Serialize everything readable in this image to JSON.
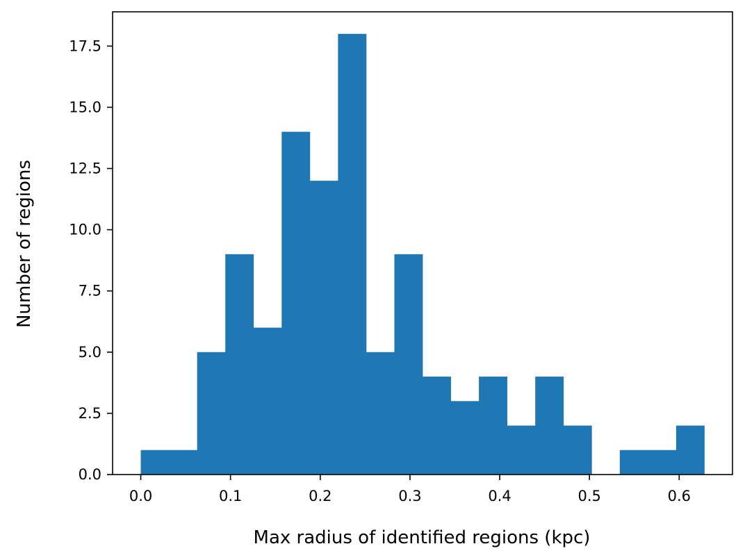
{
  "chart_data": {
    "type": "bar",
    "subtype": "histogram",
    "title": "",
    "xlabel": "Max radius of identified regions (kpc)",
    "ylabel": "Number of regions",
    "xlim": [
      -0.0314,
      0.6594
    ],
    "ylim": [
      0,
      18.9
    ],
    "bin_edges": [
      0.0,
      0.0314,
      0.0628,
      0.0942,
      0.1256,
      0.157,
      0.1884,
      0.2198,
      0.2512,
      0.2826,
      0.314,
      0.3454,
      0.3768,
      0.4082,
      0.4396,
      0.471,
      0.5024,
      0.5338,
      0.5652,
      0.5966,
      0.628
    ],
    "values": [
      1,
      1,
      5,
      9,
      6,
      14,
      12,
      18,
      5,
      9,
      4,
      3,
      4,
      2,
      4,
      2,
      0,
      1,
      1,
      2
    ],
    "xticks": [
      0.0,
      0.1,
      0.2,
      0.3,
      0.4,
      0.5,
      0.6
    ],
    "xtick_labels": [
      "0.0",
      "0.1",
      "0.2",
      "0.3",
      "0.4",
      "0.5",
      "0.6"
    ],
    "yticks": [
      0.0,
      2.5,
      5.0,
      7.5,
      10.0,
      12.5,
      15.0,
      17.5
    ],
    "ytick_labels": [
      "0.0",
      "2.5",
      "5.0",
      "7.5",
      "10.0",
      "12.5",
      "15.0",
      "17.5"
    ],
    "grid": false,
    "legend": "none",
    "colors": {
      "bar": "#1f77b4",
      "axes": "#000000",
      "background": "#ffffff"
    }
  }
}
